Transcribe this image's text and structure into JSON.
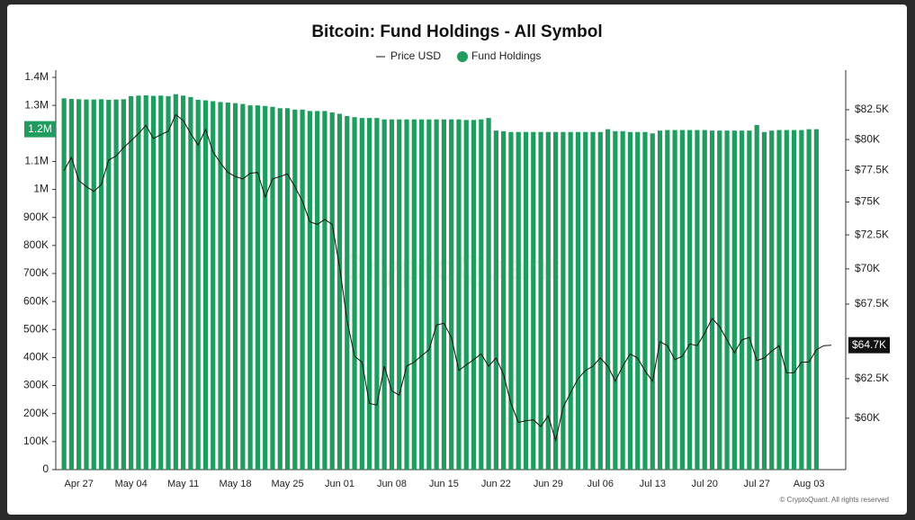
{
  "chart_data": {
    "type": "bar",
    "title": "Bitcoin: Fund Holdings - All Symbol",
    "watermark": "CryptoQuant",
    "credit": "© CryptoQuant. All rights reserved",
    "categories": [
      null,
      null,
      "Apr 27",
      null,
      null,
      null,
      null,
      null,
      null,
      "May 04",
      null,
      null,
      null,
      null,
      null,
      null,
      "May 11",
      null,
      null,
      null,
      null,
      null,
      null,
      "May 18",
      null,
      null,
      null,
      null,
      null,
      null,
      "May 25",
      null,
      null,
      null,
      null,
      null,
      null,
      "Jun 01",
      null,
      null,
      null,
      null,
      null,
      null,
      "Jun 08",
      null,
      null,
      null,
      null,
      null,
      null,
      "Jun 15",
      null,
      null,
      null,
      null,
      null,
      null,
      "Jun 22",
      null,
      null,
      null,
      null,
      null,
      null,
      "Jun 29",
      null,
      null,
      null,
      null,
      null,
      null,
      "Jul 06",
      null,
      null,
      null,
      null,
      null,
      null,
      "Jul 13",
      null,
      null,
      null,
      null,
      null,
      null,
      "Jul 20",
      null,
      null,
      null,
      null,
      null,
      null,
      "Jul 27",
      null,
      null,
      null,
      null,
      null,
      null,
      "Aug 03",
      null,
      null,
      null
    ],
    "series": [
      {
        "name": "Fund Holdings",
        "type": "bar",
        "color": "#1f9d5f",
        "last_label": "1.2M",
        "values": [
          1325000,
          1323000,
          1322000,
          1321000,
          1321000,
          1322000,
          1320000,
          1321000,
          1322000,
          1333000,
          1335000,
          1336000,
          1334000,
          1335000,
          1333000,
          1340000,
          1335000,
          1330000,
          1320000,
          1318000,
          1315000,
          1312000,
          1310000,
          1308000,
          1305000,
          1300000,
          1300000,
          1298000,
          1295000,
          1290000,
          1290000,
          1285000,
          1285000,
          1280000,
          1280000,
          1280000,
          1275000,
          1270000,
          1262000,
          1258000,
          1255000,
          1255000,
          1255000,
          1250000,
          1250000,
          1250000,
          1250000,
          1250000,
          1250000,
          1250000,
          1250000,
          1250000,
          1250000,
          1250000,
          1248000,
          1248000,
          1250000,
          1255000,
          1210000,
          1208000,
          1205000,
          1205000,
          1205000,
          1205000,
          1205000,
          1205000,
          1205000,
          1205000,
          1205000,
          1205000,
          1205000,
          1205000,
          1205000,
          1215000,
          1208000,
          1208000,
          1205000,
          1205000,
          1205000,
          1200000,
          1210000,
          1212000,
          1212000,
          1212000,
          1212000,
          1212000,
          1212000,
          1210000,
          1210000,
          1210000,
          1210000,
          1210000,
          1210000,
          1230000,
          1205000,
          1210000,
          1212000,
          1212000,
          1212000,
          1212000,
          1215000,
          1215000,
          null,
          null
        ]
      },
      {
        "name": "Price USD",
        "type": "line",
        "color": "#111111",
        "axis": "y2",
        "last_label": "$64.7K",
        "values": [
          77460,
          78530,
          76680,
          76200,
          75830,
          76350,
          78330,
          78660,
          79330,
          79900,
          80490,
          81180,
          80080,
          80400,
          80700,
          82080,
          81590,
          80500,
          79540,
          80830,
          79000,
          78100,
          77330,
          77000,
          76810,
          77260,
          77330,
          75380,
          76810,
          77000,
          77200,
          76200,
          75060,
          73480,
          73290,
          73670,
          73290,
          70120,
          66340,
          63960,
          63580,
          60930,
          60820,
          63310,
          61710,
          61450,
          63310,
          63580,
          64000,
          64390,
          66060,
          66180,
          65220,
          63030,
          63400,
          63740,
          64120,
          63310,
          63850,
          62770,
          60930,
          59740,
          59850,
          59900,
          59490,
          60150,
          58640,
          60670,
          61600,
          62500,
          63030,
          63310,
          63850,
          63310,
          62340,
          63310,
          64120,
          63850,
          63000,
          62340,
          64940,
          64670,
          63740,
          63960,
          64780,
          64670,
          65500,
          66510,
          65950,
          65050,
          64180,
          65050,
          65220,
          63680,
          63850,
          64300,
          64670,
          62880,
          62880,
          63580,
          63580,
          64390,
          64670,
          64700
        ]
      }
    ],
    "ylim": [
      0,
      1400000
    ],
    "yticks": [
      0,
      {
        "value": 100000,
        "label": "100K"
      },
      {
        "value": 200000,
        "label": "200K"
      },
      {
        "value": 300000,
        "label": "300K"
      },
      {
        "value": 400000,
        "label": "400K"
      },
      {
        "value": 500000,
        "label": "500K"
      },
      {
        "value": 600000,
        "label": "600K"
      },
      {
        "value": 700000,
        "label": "700K"
      },
      {
        "value": 800000,
        "label": "800K"
      },
      {
        "value": 900000,
        "label": "900K"
      },
      {
        "value": 1000000,
        "label": "1M"
      },
      {
        "value": 1100000,
        "label": "1.1M"
      },
      {
        "value": 1200000,
        "label": "1.2M"
      },
      {
        "value": 1300000,
        "label": "1.3M"
      },
      {
        "value": 1400000,
        "label": "1.4M"
      }
    ],
    "y2lim": [
      56900,
      85300
    ],
    "y2log": true,
    "y2ticks": [
      {
        "value": 60000,
        "label": "$60K"
      },
      {
        "value": 62500,
        "label": "$62.5K"
      },
      {
        "value": 67500,
        "label": "$67.5K"
      },
      {
        "value": 70000,
        "label": "$70K"
      },
      {
        "value": 72500,
        "label": "$72.5K"
      },
      {
        "value": 75000,
        "label": "$75K"
      },
      {
        "value": 77500,
        "label": "$77.5K"
      },
      {
        "value": 80000,
        "label": "$80K"
      },
      {
        "value": 82500,
        "label": "$82.5K"
      }
    ],
    "grid": false
  }
}
